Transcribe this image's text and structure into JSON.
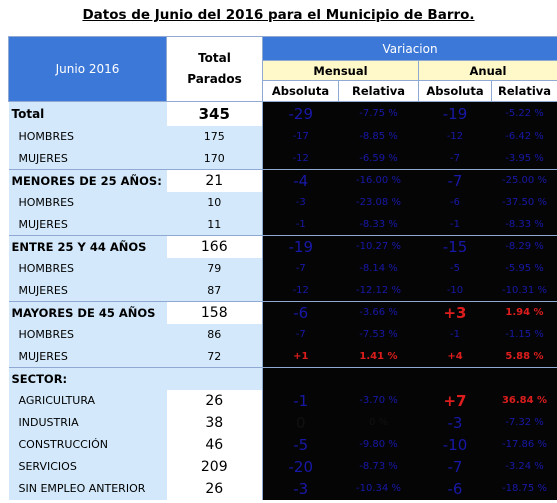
{
  "title": "Datos de Junio del 2016 para el Municipio de Barro.",
  "header": {
    "period": "Junio 2016",
    "total_label": "Total\nParados",
    "variacion": "Variacion",
    "mensual": "Mensual",
    "anual": "Anual",
    "absoluta": "Absoluta",
    "relativa": "Relativa"
  },
  "rows": {
    "total": {
      "label": "Total",
      "value": "345",
      "m_abs": "-29",
      "m_rel": "-7.75 %",
      "a_abs": "-19",
      "a_rel": "-5.22 %"
    },
    "t_hombres": {
      "label": "HOMBRES",
      "value": "175",
      "m_abs": "-17",
      "m_rel": "-8.85 %",
      "a_abs": "-12",
      "a_rel": "-6.42 %"
    },
    "t_mujeres": {
      "label": "MUJERES",
      "value": "170",
      "m_abs": "-12",
      "m_rel": "-6.59 %",
      "a_abs": "-7",
      "a_rel": "-3.95 %"
    },
    "m25": {
      "label": "MENORES DE 25 AÑOS:",
      "value": "21",
      "m_abs": "-4",
      "m_rel": "-16.00 %",
      "a_abs": "-7",
      "a_rel": "-25.00 %"
    },
    "m25_h": {
      "label": "HOMBRES",
      "value": "10",
      "m_abs": "-3",
      "m_rel": "-23.08 %",
      "a_abs": "-6",
      "a_rel": "-37.50 %"
    },
    "m25_m": {
      "label": "MUJERES",
      "value": "11",
      "m_abs": "-1",
      "m_rel": "-8.33 %",
      "a_abs": "-1",
      "a_rel": "-8.33 %"
    },
    "e25": {
      "label": "ENTRE 25 Y 44 AÑOS",
      "value": "166",
      "m_abs": "-19",
      "m_rel": "-10.27 %",
      "a_abs": "-15",
      "a_rel": "-8.29 %"
    },
    "e25_h": {
      "label": "HOMBRES",
      "value": "79",
      "m_abs": "-7",
      "m_rel": "-8.14 %",
      "a_abs": "-5",
      "a_rel": "-5.95 %"
    },
    "e25_m": {
      "label": "MUJERES",
      "value": "87",
      "m_abs": "-12",
      "m_rel": "-12.12 %",
      "a_abs": "-10",
      "a_rel": "-10.31 %"
    },
    "m45": {
      "label": "MAYORES DE 45 AÑOS",
      "value": "158",
      "m_abs": "-6",
      "m_rel": "-3.66 %",
      "a_abs": "+3",
      "a_rel": "1.94 %"
    },
    "m45_h": {
      "label": "HOMBRES",
      "value": "86",
      "m_abs": "-7",
      "m_rel": "-7.53 %",
      "a_abs": "-1",
      "a_rel": "-1.15 %"
    },
    "m45_m": {
      "label": "MUJERES",
      "value": "72",
      "m_abs": "+1",
      "m_rel": "1.41 %",
      "a_abs": "+4",
      "a_rel": "5.88 %"
    },
    "sector": {
      "label": "SECTOR:"
    },
    "agri": {
      "label": "AGRICULTURA",
      "value": "26",
      "m_abs": "-1",
      "m_rel": "-3.70 %",
      "a_abs": "+7",
      "a_rel": "36.84 %"
    },
    "indu": {
      "label": "INDUSTRIA",
      "value": "38",
      "m_abs": "0",
      "m_rel": "0 %",
      "a_abs": "-3",
      "a_rel": "-7.32 %"
    },
    "cons": {
      "label": "CONSTRUCCIÓN",
      "value": "46",
      "m_abs": "-5",
      "m_rel": "-9.80 %",
      "a_abs": "-10",
      "a_rel": "-17.86 %"
    },
    "serv": {
      "label": "SERVICIOS",
      "value": "209",
      "m_abs": "-20",
      "m_rel": "-8.73 %",
      "a_abs": "-7",
      "a_rel": "-3.24 %"
    },
    "sinemp": {
      "label": "SIN EMPLEO ANTERIOR",
      "value": "26",
      "m_abs": "-3",
      "m_rel": "-10.34 %",
      "a_abs": "-6",
      "a_rel": "-18.75 %"
    }
  },
  "colors": {
    "header_blue": "#3c78d8",
    "label_bg": "#d3e9fb",
    "dark_cell": "#050505",
    "negative_text": "#1818a8",
    "positive_text": "#dd1d1d",
    "subheader_cream": "#fff9c9"
  }
}
